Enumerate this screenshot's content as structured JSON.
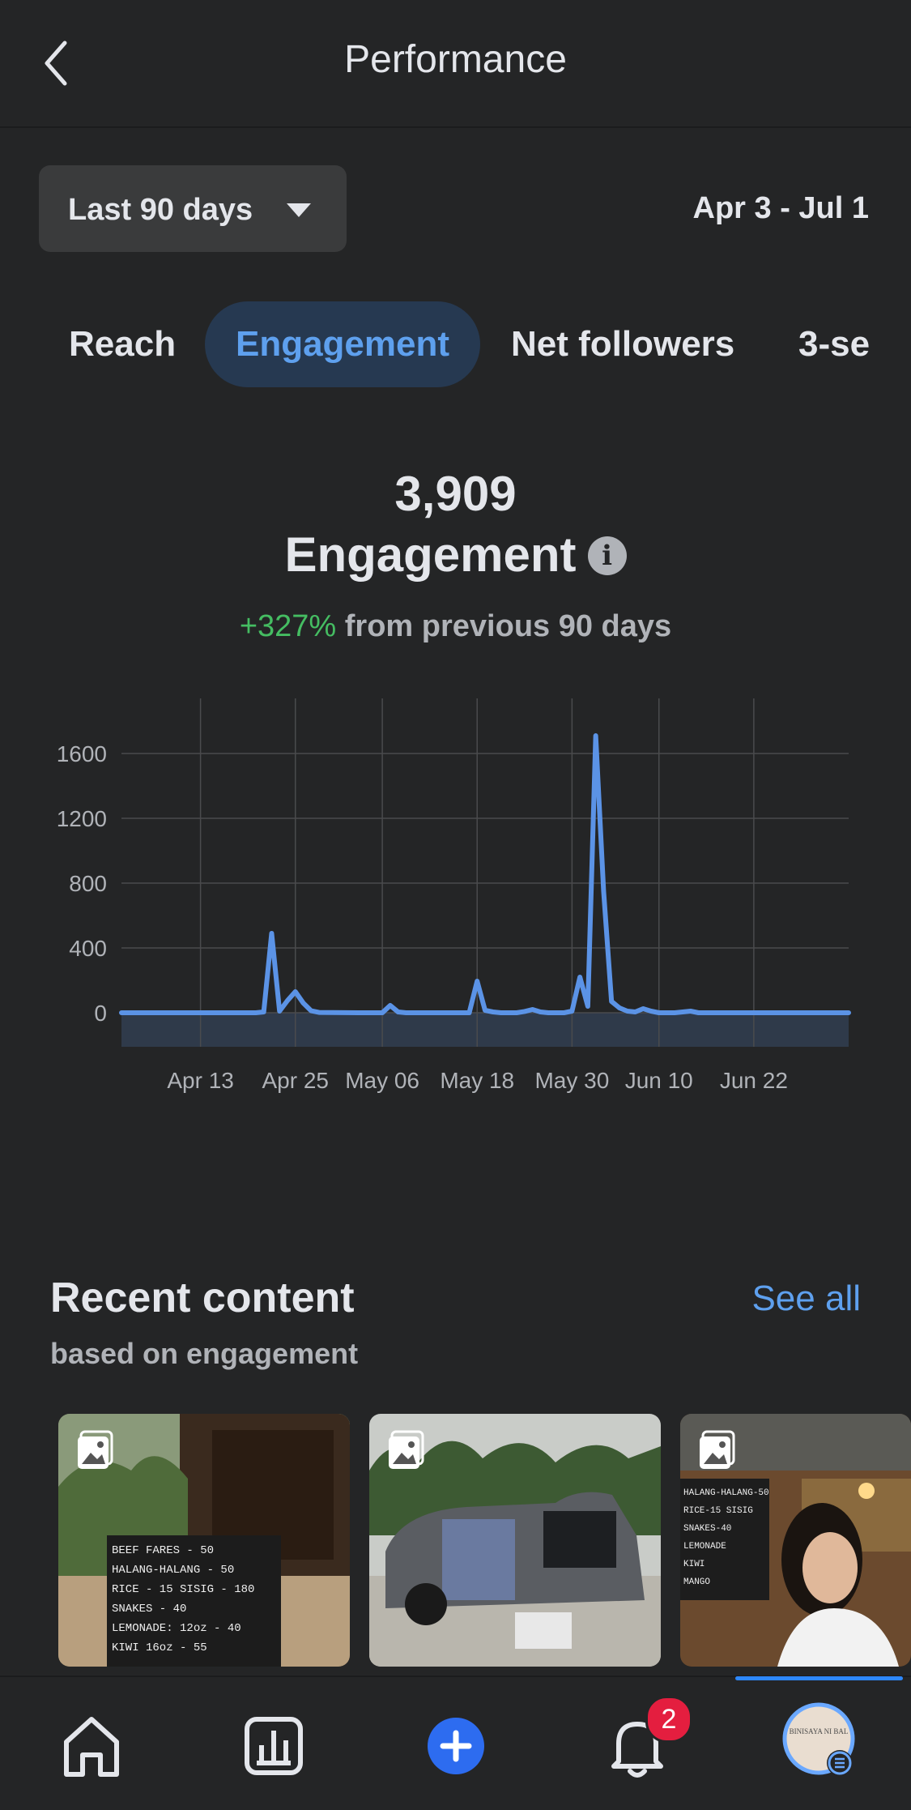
{
  "header": {
    "title": "Performance"
  },
  "range": {
    "label": "Last 90 days",
    "dates": "Apr 3 - Jul 1"
  },
  "tabs": [
    {
      "label": "Reach"
    },
    {
      "label": "Engagement"
    },
    {
      "label": "Net followers"
    },
    {
      "label": "3-se"
    }
  ],
  "metric": {
    "value": "3,909",
    "label": "Engagement",
    "info_glyph": "i",
    "change": "+327%",
    "change_text": "from previous 90 days"
  },
  "colors": {
    "accent": "#5ea0ee",
    "line": "#5b93e6",
    "positive": "#45bd62",
    "badge": "#e41e3f"
  },
  "chart_data": {
    "type": "line",
    "title": "",
    "xlabel": "",
    "ylabel": "",
    "ylim": [
      0,
      1600
    ],
    "yticks": [
      0,
      400,
      800,
      1200,
      1600
    ],
    "xtick_labels": [
      "Apr 13",
      "Apr 25",
      "May 06",
      "May 18",
      "May 30",
      "Jun 10",
      "Jun 22"
    ],
    "xtick_days": [
      10,
      22,
      33,
      45,
      57,
      68,
      80
    ],
    "grid": true,
    "series": [
      {
        "values": [
          [
            0,
            0
          ],
          [
            17,
            0
          ],
          [
            18,
            5
          ],
          [
            19,
            490
          ],
          [
            20,
            10
          ],
          [
            21,
            75
          ],
          [
            22,
            130
          ],
          [
            23,
            60
          ],
          [
            24,
            12
          ],
          [
            25,
            2
          ],
          [
            30,
            0
          ],
          [
            33,
            0
          ],
          [
            34,
            45
          ],
          [
            35,
            5
          ],
          [
            36,
            0
          ],
          [
            44,
            0
          ],
          [
            45,
            195
          ],
          [
            46,
            15
          ],
          [
            47,
            5
          ],
          [
            48,
            0
          ],
          [
            50,
            0
          ],
          [
            51,
            8
          ],
          [
            52,
            20
          ],
          [
            53,
            5
          ],
          [
            54,
            0
          ],
          [
            56,
            0
          ],
          [
            57,
            10
          ],
          [
            58,
            220
          ],
          [
            59,
            40
          ],
          [
            60,
            1710
          ],
          [
            61,
            750
          ],
          [
            62,
            70
          ],
          [
            63,
            30
          ],
          [
            64,
            10
          ],
          [
            65,
            5
          ],
          [
            66,
            25
          ],
          [
            67,
            10
          ],
          [
            68,
            0
          ],
          [
            70,
            0
          ],
          [
            72,
            10
          ],
          [
            73,
            0
          ],
          [
            92,
            0
          ]
        ]
      }
    ]
  },
  "recent": {
    "title": "Recent content",
    "subtitle": "based on engagement",
    "see_all": "See all",
    "items": [
      {
        "menu_lines": [
          "BEEF FARES - 50",
          "HALANG-HALANG - 50",
          "RICE - 15    SISIG - 180",
          "SNAKES - 40",
          "LEMONADE:  12oz - 40",
          "KIWI        16oz - 55"
        ]
      },
      {
        "menu_lines": []
      },
      {
        "menu_lines": [
          "HALANG-HALANG-50",
          "RICE-15  SISIG",
          "SNAKES-40",
          "LEMONADE",
          "KIWI",
          "MANGO"
        ]
      }
    ]
  },
  "nav": {
    "items": [
      "home-icon",
      "insights-icon",
      "create-icon",
      "notifications-icon",
      "profile-icon"
    ],
    "notification_count": "2",
    "profile_text": "BINISAYA NI BAL"
  }
}
